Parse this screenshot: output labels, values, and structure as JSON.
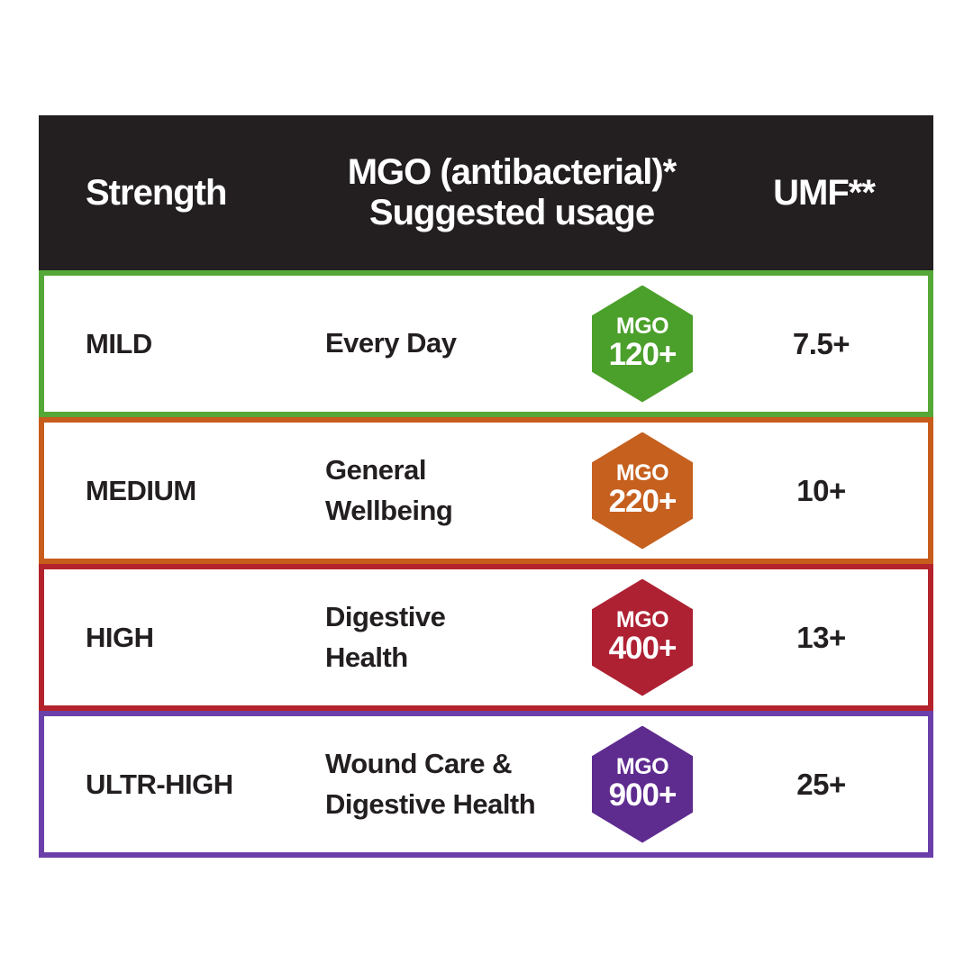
{
  "table": {
    "header": {
      "strength_label": "Strength",
      "mgo_line1": "MGO (antibacterial)*",
      "mgo_line2": "Suggested usage",
      "umf_label": "UMF**",
      "bg_color": "#231f20",
      "text_color": "#ffffff"
    },
    "rows": [
      {
        "strength": "MILD",
        "usage_lines": [
          "Every Day"
        ],
        "badge_label": "MGO",
        "badge_value": "120+",
        "umf": "7.5+",
        "badge_color": "#4ba02b",
        "border_color": "#55a837"
      },
      {
        "strength": "MEDIUM",
        "usage_lines": [
          "General",
          "Wellbeing"
        ],
        "badge_label": "MGO",
        "badge_value": "220+",
        "umf": "10+",
        "badge_color": "#c6601f",
        "border_color": "#c75c1d"
      },
      {
        "strength": "HIGH",
        "usage_lines": [
          "Digestive",
          "Health"
        ],
        "badge_label": "MGO",
        "badge_value": "400+",
        "umf": "13+",
        "badge_color": "#ae2133",
        "border_color": "#b4232c"
      },
      {
        "strength": "ULTR-HIGH",
        "usage_lines": [
          "Wound Care &",
          "Digestive Health"
        ],
        "badge_label": "MGO",
        "badge_value": "900+",
        "umf": "25+",
        "badge_color": "#5e2b8f",
        "border_color": "#6b3fa9"
      }
    ]
  },
  "chart_data": {
    "type": "table",
    "title": "",
    "columns": [
      "Strength",
      "MGO (antibacterial)* Suggested usage",
      "MGO badge",
      "UMF**"
    ],
    "rows": [
      [
        "MILD",
        "Every Day",
        "MGO 120+",
        "7.5+"
      ],
      [
        "MEDIUM",
        "General Wellbeing",
        "MGO 220+",
        "10+"
      ],
      [
        "HIGH",
        "Digestive Health",
        "MGO 400+",
        "13+"
      ],
      [
        "ULTR-HIGH",
        "Wound Care & Digestive Health",
        "MGO 900+",
        "25+"
      ]
    ]
  }
}
